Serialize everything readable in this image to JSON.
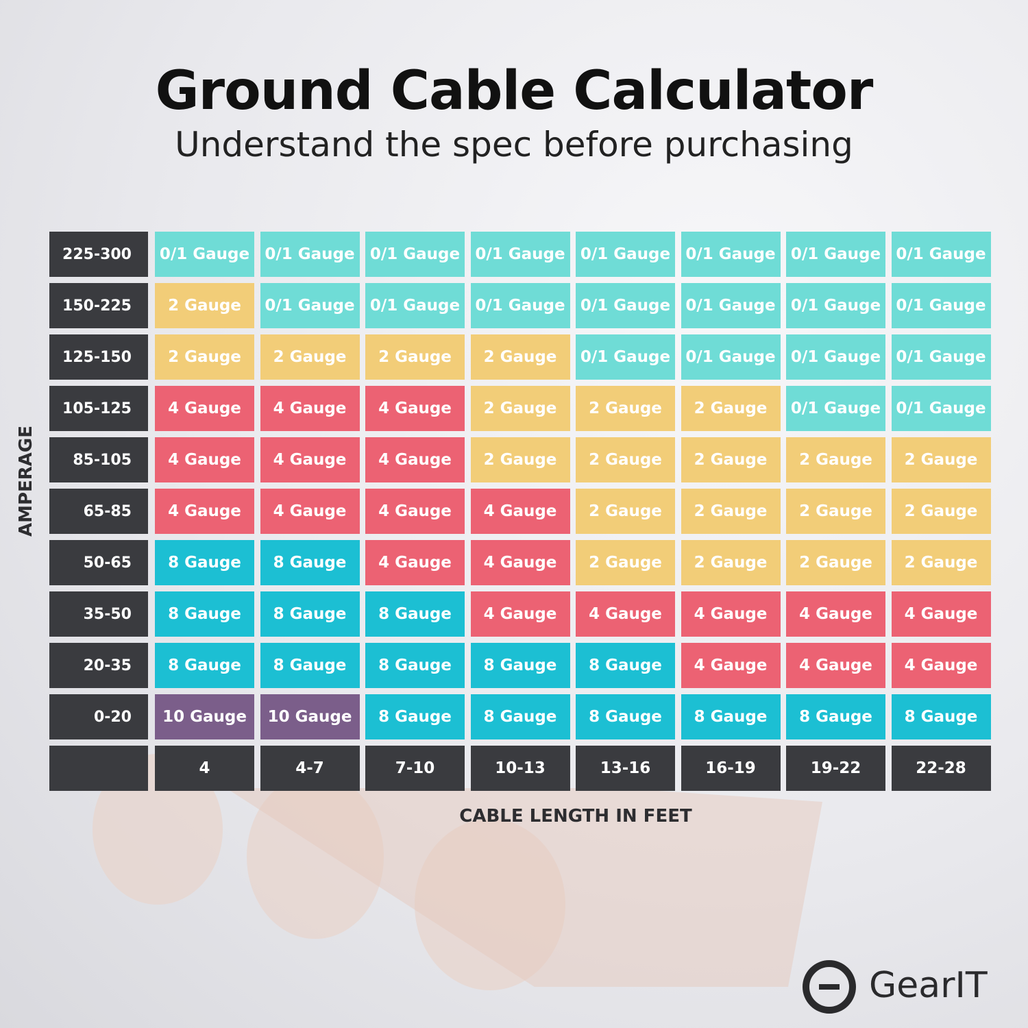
{
  "header": {
    "title": "Ground Cable Calculator",
    "subtitle": "Understand the spec before purchasing"
  },
  "table": {
    "y_axis_label": "AMPERAGE",
    "x_axis_label": "CABLE LENGTH IN FEET",
    "row_labels": [
      "225-300",
      "150-225",
      "125-150",
      "105-125",
      "85-105",
      "65-85",
      "50-65",
      "35-50",
      "20-35",
      "0-20"
    ],
    "column_labels": [
      "4",
      "4-7",
      "7-10",
      "10-13",
      "13-16",
      "16-19",
      "19-22",
      "22-28"
    ],
    "rows": [
      [
        {
          "label": "0/1 Gauge",
          "color": "#6fdcd6"
        },
        {
          "label": "0/1 Gauge",
          "color": "#6fdcd6"
        },
        {
          "label": "0/1 Gauge",
          "color": "#6fdcd6"
        },
        {
          "label": "0/1 Gauge",
          "color": "#6fdcd6"
        },
        {
          "label": "0/1 Gauge",
          "color": "#6fdcd6"
        },
        {
          "label": "0/1 Gauge",
          "color": "#6fdcd6"
        },
        {
          "label": "0/1 Gauge",
          "color": "#6fdcd6"
        },
        {
          "label": "0/1 Gauge",
          "color": "#6fdcd6"
        }
      ],
      [
        {
          "label": "2 Gauge",
          "color": "#f2cd78"
        },
        {
          "label": "0/1 Gauge",
          "color": "#6fdcd6"
        },
        {
          "label": "0/1 Gauge",
          "color": "#6fdcd6"
        },
        {
          "label": "0/1 Gauge",
          "color": "#6fdcd6"
        },
        {
          "label": "0/1 Gauge",
          "color": "#6fdcd6"
        },
        {
          "label": "0/1 Gauge",
          "color": "#6fdcd6"
        },
        {
          "label": "0/1 Gauge",
          "color": "#6fdcd6"
        },
        {
          "label": "0/1 Gauge",
          "color": "#6fdcd6"
        }
      ],
      [
        {
          "label": "2 Gauge",
          "color": "#f2cd78"
        },
        {
          "label": "2 Gauge",
          "color": "#f2cd78"
        },
        {
          "label": "2 Gauge",
          "color": "#f2cd78"
        },
        {
          "label": "2 Gauge",
          "color": "#f2cd78"
        },
        {
          "label": "0/1 Gauge",
          "color": "#6fdcd6"
        },
        {
          "label": "0/1 Gauge",
          "color": "#6fdcd6"
        },
        {
          "label": "0/1 Gauge",
          "color": "#6fdcd6"
        },
        {
          "label": "0/1 Gauge",
          "color": "#6fdcd6"
        }
      ],
      [
        {
          "label": "4 Gauge",
          "color": "#ec6273"
        },
        {
          "label": "4 Gauge",
          "color": "#ec6273"
        },
        {
          "label": "4 Gauge",
          "color": "#ec6273"
        },
        {
          "label": "2 Gauge",
          "color": "#f2cd78"
        },
        {
          "label": "2 Gauge",
          "color": "#f2cd78"
        },
        {
          "label": "2 Gauge",
          "color": "#f2cd78"
        },
        {
          "label": "0/1 Gauge",
          "color": "#6fdcd6"
        },
        {
          "label": "0/1 Gauge",
          "color": "#6fdcd6"
        }
      ],
      [
        {
          "label": "4 Gauge",
          "color": "#ec6273"
        },
        {
          "label": "4 Gauge",
          "color": "#ec6273"
        },
        {
          "label": "4 Gauge",
          "color": "#ec6273"
        },
        {
          "label": "2 Gauge",
          "color": "#f2cd78"
        },
        {
          "label": "2 Gauge",
          "color": "#f2cd78"
        },
        {
          "label": "2 Gauge",
          "color": "#f2cd78"
        },
        {
          "label": "2 Gauge",
          "color": "#f2cd78"
        },
        {
          "label": "2 Gauge",
          "color": "#f2cd78"
        }
      ],
      [
        {
          "label": "4 Gauge",
          "color": "#ec6273"
        },
        {
          "label": "4 Gauge",
          "color": "#ec6273"
        },
        {
          "label": "4 Gauge",
          "color": "#ec6273"
        },
        {
          "label": "4 Gauge",
          "color": "#ec6273"
        },
        {
          "label": "2 Gauge",
          "color": "#f2cd78"
        },
        {
          "label": "2 Gauge",
          "color": "#f2cd78"
        },
        {
          "label": "2 Gauge",
          "color": "#f2cd78"
        },
        {
          "label": "2 Gauge",
          "color": "#f2cd78"
        }
      ],
      [
        {
          "label": "8 Gauge",
          "color": "#1cbfd3"
        },
        {
          "label": "8 Gauge",
          "color": "#1cbfd3"
        },
        {
          "label": "4 Gauge",
          "color": "#ec6273"
        },
        {
          "label": "4 Gauge",
          "color": "#ec6273"
        },
        {
          "label": "2 Gauge",
          "color": "#f2cd78"
        },
        {
          "label": "2 Gauge",
          "color": "#f2cd78"
        },
        {
          "label": "2 Gauge",
          "color": "#f2cd78"
        },
        {
          "label": "2 Gauge",
          "color": "#f2cd78"
        }
      ],
      [
        {
          "label": "8 Gauge",
          "color": "#1cbfd3"
        },
        {
          "label": "8 Gauge",
          "color": "#1cbfd3"
        },
        {
          "label": "8 Gauge",
          "color": "#1cbfd3"
        },
        {
          "label": "4 Gauge",
          "color": "#ec6273"
        },
        {
          "label": "4 Gauge",
          "color": "#ec6273"
        },
        {
          "label": "4 Gauge",
          "color": "#ec6273"
        },
        {
          "label": "4 Gauge",
          "color": "#ec6273"
        },
        {
          "label": "4 Gauge",
          "color": "#ec6273"
        }
      ],
      [
        {
          "label": "8 Gauge",
          "color": "#1cbfd3"
        },
        {
          "label": "8 Gauge",
          "color": "#1cbfd3"
        },
        {
          "label": "8 Gauge",
          "color": "#1cbfd3"
        },
        {
          "label": "8 Gauge",
          "color": "#1cbfd3"
        },
        {
          "label": "8 Gauge",
          "color": "#1cbfd3"
        },
        {
          "label": "4 Gauge",
          "color": "#ec6273"
        },
        {
          "label": "4 Gauge",
          "color": "#ec6273"
        },
        {
          "label": "4 Gauge",
          "color": "#ec6273"
        }
      ],
      [
        {
          "label": "10 Gauge",
          "color": "#7b5e8a"
        },
        {
          "label": "10 Gauge",
          "color": "#7b5e8a"
        },
        {
          "label": "8 Gauge",
          "color": "#1cbfd3"
        },
        {
          "label": "8 Gauge",
          "color": "#1cbfd3"
        },
        {
          "label": "8 Gauge",
          "color": "#1cbfd3"
        },
        {
          "label": "8 Gauge",
          "color": "#1cbfd3"
        },
        {
          "label": "8 Gauge",
          "color": "#1cbfd3"
        },
        {
          "label": "8 Gauge",
          "color": "#1cbfd3"
        }
      ]
    ]
  },
  "brand": "GearIT"
}
